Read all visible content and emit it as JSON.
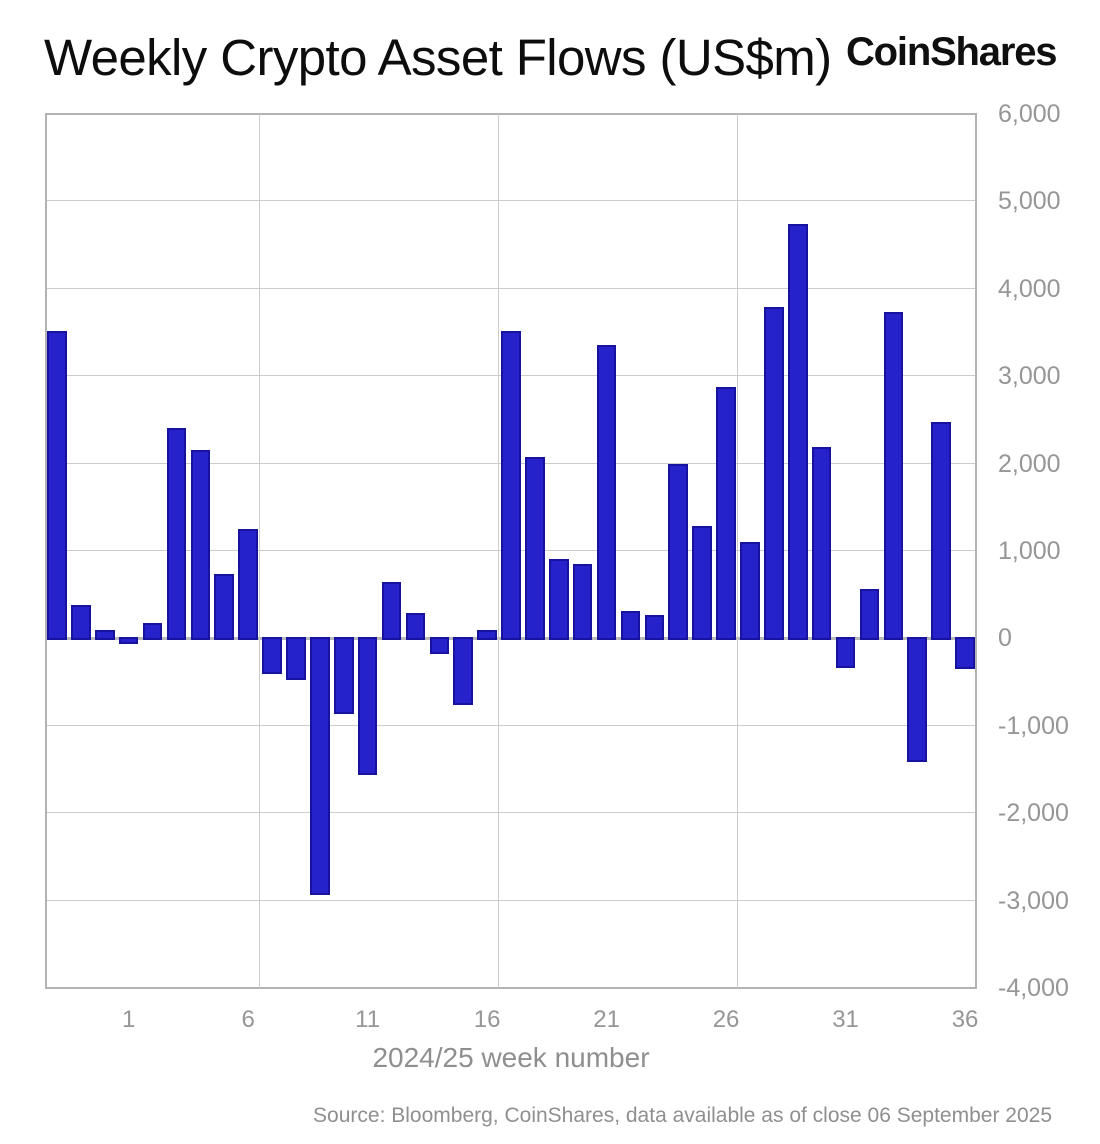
{
  "header": {
    "title": "Weekly Crypto Asset Flows (US$m)",
    "logo": "CoinShares"
  },
  "footer": {
    "source": "Source: Bloomberg, CoinShares, data available as of close 06 September 2025"
  },
  "chart_data": {
    "type": "bar",
    "title": "Weekly Crypto Asset Flows (US$m)",
    "xlabel": "2024/25 week number",
    "ylabel": "",
    "x": [
      -2,
      -1,
      0,
      1,
      2,
      3,
      4,
      5,
      6,
      7,
      8,
      9,
      10,
      11,
      12,
      13,
      14,
      15,
      16,
      17,
      18,
      19,
      20,
      21,
      22,
      23,
      24,
      25,
      26,
      27,
      28,
      29,
      30,
      31,
      32,
      33,
      34,
      35,
      36
    ],
    "values": [
      3520,
      380,
      100,
      -60,
      180,
      2410,
      2150,
      740,
      1250,
      -410,
      -480,
      -2940,
      -870,
      -1560,
      650,
      290,
      -180,
      -760,
      100,
      3520,
      2070,
      910,
      850,
      3360,
      310,
      270,
      1990,
      1290,
      2880,
      1100,
      3790,
      4740,
      2190,
      -340,
      570,
      3740,
      -1420,
      2480,
      -350
    ],
    "ylim": [
      -4000,
      6000
    ],
    "y_tick_step": 1000,
    "y_tick_labels": [
      "6,000",
      "5,000",
      "4,000",
      "3,000",
      "2,000",
      "1,000",
      "0",
      "-1,000",
      "-2,000",
      "-3,000",
      "-4,000"
    ],
    "x_tick_indices": [
      3,
      8,
      13,
      18,
      23,
      28,
      33,
      38
    ],
    "x_tick_labels": [
      "1",
      "6",
      "11",
      "16",
      "21",
      "26",
      "31",
      "36"
    ],
    "vertical_gridline_boundaries": [
      9,
      19,
      29
    ],
    "grid": true,
    "legend": "none",
    "bar_color": "#2521cb",
    "bar_border_color": "#17139e",
    "gridline_color": "#cccccc",
    "axis_color": "#b2b2b2",
    "tick_label_color": "#969696",
    "title_color": "#0d0d0d"
  }
}
